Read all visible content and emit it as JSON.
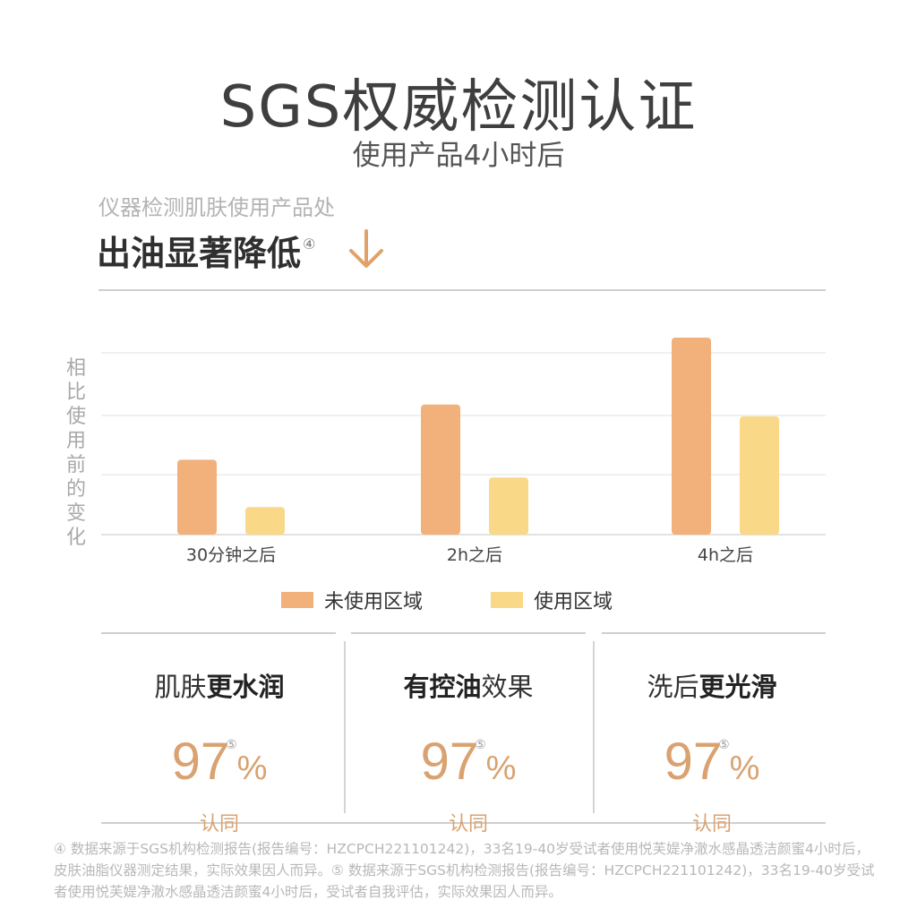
{
  "header": {
    "title": "SGS权威检测认证",
    "subtitle": "使用产品4小时后"
  },
  "finding": {
    "kicker": "仪器检测肌肤使用产品处",
    "headline": "出油显著降低",
    "headline_note": "④",
    "arrow_icon": "down-arrow-icon"
  },
  "colors": {
    "unused": "#f2b07a",
    "used": "#f9d888",
    "accent": "#d9a270"
  },
  "chart_data": {
    "type": "bar",
    "categories": [
      "30分钟之后",
      "2h之后",
      "4h之后"
    ],
    "ylabel": "相比使用前的变化",
    "grid": true,
    "legend_position": "bottom",
    "ylim": [
      0,
      100
    ],
    "series": [
      {
        "name": "未使用区域",
        "values": [
          38,
          66,
          100
        ]
      },
      {
        "name": "使用区域",
        "values": [
          14,
          29,
          60
        ]
      }
    ]
  },
  "cards": [
    {
      "label_plain": "肌肤",
      "label_bold": "更水润",
      "label_order": "plain-first",
      "value": "97",
      "unit": "%",
      "note": "⑤",
      "agree": "认同"
    },
    {
      "label_bold": "有控油",
      "label_plain": "效果",
      "label_order": "bold-first",
      "value": "97",
      "unit": "%",
      "note": "⑤",
      "agree": "认同"
    },
    {
      "label_plain": "洗后",
      "label_bold": "更光滑",
      "label_order": "plain-first",
      "value": "97",
      "unit": "%",
      "note": "⑤",
      "agree": "认同"
    }
  ],
  "footnote": "④ 数据来源于SGS机构检测报告(报告编号：HZCPCH221101242)，33名19-40岁受试者使用悦芙媞净澈水感晶透洁颜蜜4小时后，皮肤油脂仪器测定结果，实际效果因人而异。⑤ 数据来源于SGS机构检测报告(报告编号：HZCPCH221101242)，33名19-40岁受试者使用悦芙媞净澈水感晶透洁颜蜜4小时后，受试者自我评估，实际效果因人而异。"
}
